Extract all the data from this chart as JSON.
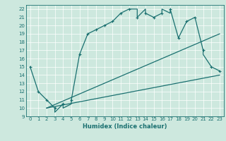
{
  "xlabel": "Humidex (Indice chaleur)",
  "bg_color": "#cde8de",
  "line_color": "#1a7070",
  "grid_color": "#ffffff",
  "xlim": [
    -0.5,
    23.5
  ],
  "ylim": [
    9,
    22.5
  ],
  "xticks": [
    0,
    1,
    2,
    3,
    4,
    5,
    6,
    7,
    8,
    9,
    10,
    11,
    12,
    13,
    14,
    15,
    16,
    17,
    18,
    19,
    20,
    21,
    22,
    23
  ],
  "yticks": [
    9,
    10,
    11,
    12,
    13,
    14,
    15,
    16,
    17,
    18,
    19,
    20,
    21,
    22
  ],
  "curve1_x": [
    0,
    1,
    2,
    3,
    3,
    4,
    4,
    5,
    5,
    6,
    7,
    8,
    9,
    10,
    11,
    12,
    13,
    13,
    14,
    14,
    15,
    16,
    16,
    17,
    17,
    18,
    19,
    20,
    21,
    21,
    22,
    23
  ],
  "curve1_y": [
    15,
    12,
    11,
    10,
    9.5,
    10.5,
    10,
    10.5,
    11,
    16.5,
    19,
    19.5,
    20,
    20.5,
    21.5,
    22,
    22,
    21,
    22,
    21.5,
    21,
    21.5,
    22,
    21.5,
    22,
    18.5,
    20.5,
    21,
    17,
    16.5,
    15,
    14.5
  ],
  "markers_x": [
    0,
    1,
    2,
    3,
    4,
    5,
    6,
    7,
    8,
    9,
    10,
    11,
    12,
    13,
    14,
    15,
    16,
    17,
    18,
    19,
    20,
    21,
    22,
    23
  ],
  "markers_y": [
    15,
    12,
    11,
    10,
    10.5,
    11,
    16.5,
    19,
    19.5,
    20,
    20.5,
    21.5,
    22,
    21,
    21.5,
    21,
    21.5,
    22,
    18.5,
    20.5,
    21,
    17,
    15,
    14.5
  ],
  "line2_x": [
    2,
    23
  ],
  "line2_y": [
    10,
    19
  ],
  "line3_x": [
    2,
    23
  ],
  "line3_y": [
    10,
    14
  ],
  "xlabel_fontsize": 6,
  "tick_fontsize": 5,
  "linewidth": 0.9,
  "marker_size": 3
}
